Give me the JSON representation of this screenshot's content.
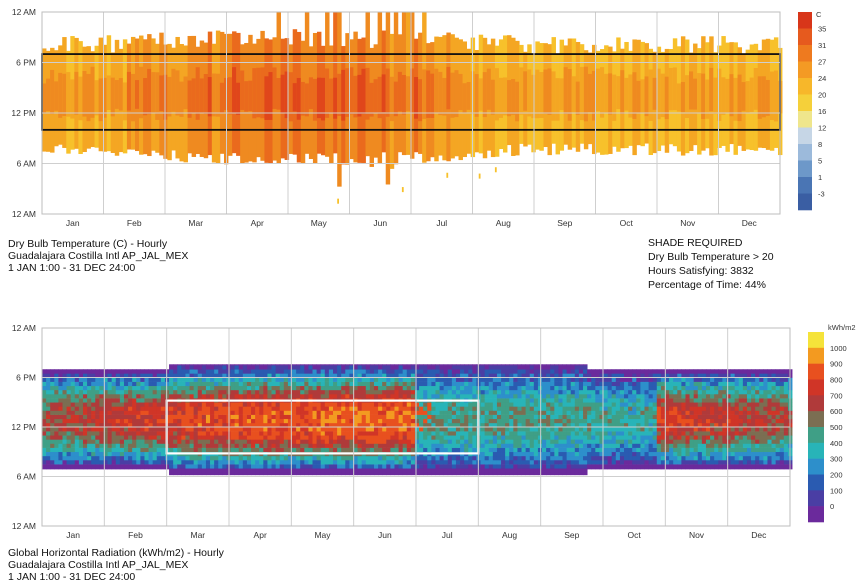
{
  "chart_data": [
    {
      "type": "heatmap",
      "title": "Dry Bulb Temperature (C) - Hourly",
      "location": "Guadalajara Costilla Intl AP_JAL_MEX",
      "period": "1 JAN 1:00 - 31 DEC 24:00",
      "x_tick_labels": [
        "Jan",
        "Feb",
        "Mar",
        "Apr",
        "May",
        "Jun",
        "Jul",
        "Aug",
        "Sep",
        "Oct",
        "Nov",
        "Dec"
      ],
      "y_tick_labels": [
        "12 AM",
        "6 PM",
        "12 PM",
        "6 AM",
        "12 AM"
      ],
      "legend_title": "C",
      "legend_labels": [
        "35",
        "31",
        "27",
        "24",
        "20",
        "16",
        "12",
        "8",
        "5",
        "1",
        "-3"
      ],
      "legend_colors": [
        "#d8361a",
        "#e65a1e",
        "#ee7a1f",
        "#f49a24",
        "#f7b72a",
        "#f5d03a",
        "#efe68c",
        "#c6d6e6",
        "#9cbadb",
        "#6d98c9",
        "#4a75b4",
        "#3a5ea3"
      ],
      "grid": true,
      "shaded_condition": "Dry Bulb Temperature > 20",
      "highlight_box_hours": [
        10,
        19
      ],
      "stats": {
        "heading": "SHADE REQUIRED",
        "condition": "Dry Bulb Temperature > 20",
        "hours_satisfying": "Hours Satisfying: 3832",
        "percentage": "Percentage of Time: 44%"
      }
    },
    {
      "type": "heatmap",
      "title": "Global Horizontal Radiation (kWh/m2) - Hourly",
      "location": "Guadalajara Costilla Intl AP_JAL_MEX",
      "period": "1 JAN 1:00 - 31 DEC 24:00",
      "x_tick_labels": [
        "Jan",
        "Feb",
        "Mar",
        "Apr",
        "May",
        "Jun",
        "Jul",
        "Aug",
        "Sep",
        "Oct",
        "Nov",
        "Dec"
      ],
      "y_tick_labels": [
        "12 AM",
        "6 PM",
        "12 PM",
        "6 AM",
        "12 AM"
      ],
      "legend_title": "kWh/m2",
      "legend_labels": [
        "1000",
        "900",
        "800",
        "700",
        "600",
        "500",
        "400",
        "300",
        "200",
        "100",
        "0"
      ],
      "legend_colors": [
        "#f5e33a",
        "#f39a20",
        "#e8501f",
        "#d03527",
        "#b03a3a",
        "#7b6e52",
        "#3f9f86",
        "#28b4b8",
        "#2d8fcb",
        "#2a5bb1",
        "#4a3ea4",
        "#6b2a9c"
      ],
      "grid": true,
      "highlight_box_months": [
        "Mar",
        "Jul"
      ],
      "daylight_hours": "approx. 6:00 - 19:30"
    }
  ]
}
